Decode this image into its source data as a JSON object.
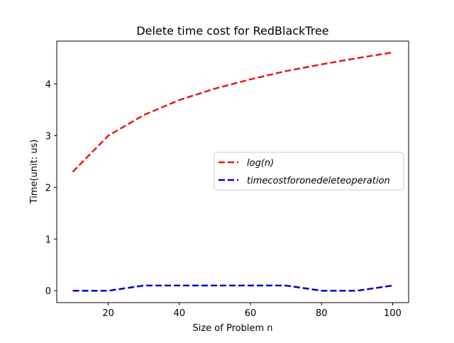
{
  "chart_data": {
    "type": "line",
    "title": "Delete time cost for RedBlackTree",
    "xlabel": "Size of Problem n",
    "ylabel": "Time(unit: us)",
    "x": [
      10,
      20,
      30,
      40,
      50,
      60,
      70,
      80,
      90,
      100
    ],
    "xlim": [
      5.5,
      104.5
    ],
    "ylim": [
      -0.23,
      4.83
    ],
    "xticks": [
      20,
      40,
      60,
      80,
      100
    ],
    "yticks": [
      0,
      1,
      2,
      3,
      4
    ],
    "grid": false,
    "legend_position": "center-right",
    "series": [
      {
        "name": "log(n)",
        "color": "#e41a1c",
        "values": [
          2.3,
          3.0,
          3.4,
          3.69,
          3.91,
          4.09,
          4.25,
          4.38,
          4.5,
          4.61
        ]
      },
      {
        "name": "timecostforonedeleteoperation",
        "color": "#0000cc",
        "values": [
          0.0,
          0.0,
          0.1,
          0.1,
          0.1,
          0.1,
          0.1,
          0.0,
          0.0,
          0.1
        ]
      }
    ]
  }
}
